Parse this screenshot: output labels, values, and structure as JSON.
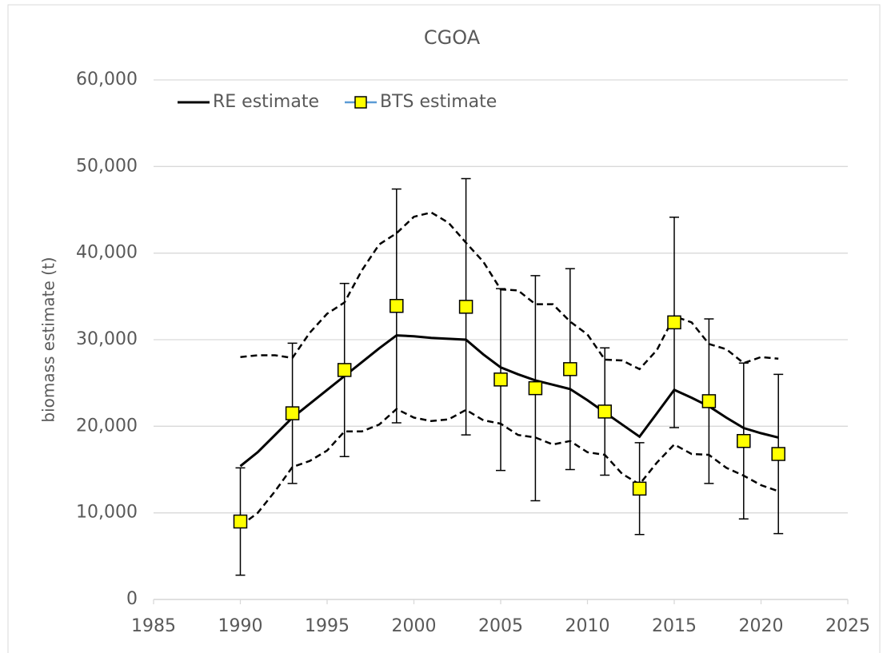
{
  "chart_data": {
    "type": "line",
    "title": "CGOA",
    "y_label": "biomass estimate (t)",
    "xlim": [
      1985,
      2025
    ],
    "xticks": [
      1985,
      1990,
      1995,
      2000,
      2005,
      2010,
      2015,
      2020,
      2025
    ],
    "ylim": [
      0,
      60000
    ],
    "yticks": [
      0,
      {
        "value": 10000,
        "label": "10,000"
      },
      {
        "value": 20000,
        "label": "20,000"
      },
      {
        "value": 30000,
        "label": "30,000"
      },
      {
        "value": 40000,
        "label": "40,000"
      },
      {
        "value": 50000,
        "label": "50,000"
      },
      {
        "value": 60000,
        "label": "60,000"
      }
    ],
    "grid": true,
    "legend": "upper left",
    "series": [
      {
        "name": "RE estimate",
        "color": "#000000",
        "style": "line",
        "x": [
          1990,
          1991,
          1992,
          1993,
          1994,
          1995,
          1996,
          1997,
          1998,
          1999,
          2000,
          2001,
          2002,
          2003,
          2004,
          2005,
          2006,
          2007,
          2008,
          2009,
          2010,
          2011,
          2012,
          2013,
          2014,
          2015,
          2016,
          2017,
          2018,
          2019,
          2020,
          2021
        ],
        "values": [
          15400,
          17000,
          19000,
          21000,
          22600,
          24200,
          25800,
          27400,
          29000,
          30500,
          30400,
          30200,
          30100,
          30000,
          28300,
          26800,
          26000,
          25300,
          24800,
          24300,
          23000,
          21600,
          20200,
          18800,
          21500,
          24200,
          23300,
          22300,
          21000,
          19800,
          19200,
          18700
        ]
      },
      {
        "name": "BTS estimate",
        "color": "#ffff00",
        "line_color": "#5b9bd5",
        "style": "markers",
        "x": [
          1990,
          1993,
          1996,
          1999,
          2003,
          2005,
          2007,
          2009,
          2011,
          2013,
          2015,
          2017,
          2019,
          2021
        ],
        "values": [
          9000,
          21500,
          26500,
          33900,
          33800,
          25400,
          24400,
          26600,
          21700,
          12800,
          32000,
          22900,
          18300,
          16800
        ],
        "errors": [
          6200,
          8100,
          10000,
          13500,
          14800,
          10500,
          13000,
          11600,
          7350,
          5300,
          12150,
          9500,
          9000,
          9200
        ]
      },
      {
        "color": "#000000",
        "style": "dashed",
        "x": [
          1990,
          1991,
          1992,
          1993,
          1994,
          1995,
          1996,
          1997,
          1998,
          1999,
          2000,
          2001,
          2002,
          2003,
          2004,
          2005,
          2006,
          2007,
          2008,
          2009,
          2010,
          2011,
          2012,
          2013,
          2014,
          2015,
          2016,
          2017,
          2018,
          2019,
          2020,
          2021
        ],
        "values": [
          28000,
          28200,
          28200,
          27900,
          30800,
          33000,
          34300,
          38000,
          41000,
          42300,
          44200,
          44700,
          43500,
          41200,
          39000,
          35800,
          35700,
          34100,
          34100,
          32100,
          30600,
          27700,
          27600,
          26600,
          28800,
          32700,
          32000,
          29500,
          28900,
          27300,
          28000,
          27800
        ]
      },
      {
        "color": "#000000",
        "style": "dashed",
        "x": [
          1990,
          1991,
          1992,
          1993,
          1994,
          1995,
          1996,
          1997,
          1998,
          1999,
          2000,
          2001,
          2002,
          2003,
          2004,
          2005,
          2006,
          2007,
          2008,
          2009,
          2010,
          2011,
          2012,
          2013,
          2014,
          2015,
          2016,
          2017,
          2018,
          2019,
          2020,
          2021
        ],
        "values": [
          8500,
          10000,
          12500,
          15300,
          16000,
          17200,
          19400,
          19400,
          20200,
          22000,
          21000,
          20600,
          20800,
          21900,
          20700,
          20300,
          19000,
          18700,
          17900,
          18300,
          17000,
          16700,
          14500,
          13300,
          15800,
          17900,
          16800,
          16700,
          15200,
          14300,
          13200,
          12500
        ]
      }
    ]
  }
}
